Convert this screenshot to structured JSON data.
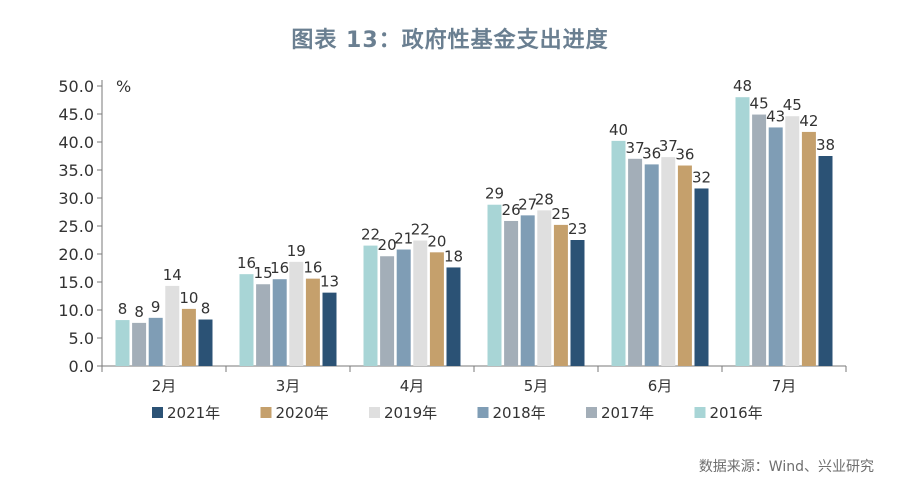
{
  "title": "图表 13：政府性基金支出进度",
  "source": "数据来源：Wind、兴业研究",
  "chart_data": {
    "type": "bar",
    "categories": [
      "2月",
      "3月",
      "4月",
      "5月",
      "6月",
      "7月"
    ],
    "yunit": "%",
    "ylim": [
      0,
      50
    ],
    "yticks": [
      "0.0",
      "5.0",
      "10.0",
      "15.0",
      "20.0",
      "25.0",
      "30.0",
      "35.0",
      "40.0",
      "45.0",
      "50.0"
    ],
    "grid": false,
    "legend_position": "bottom",
    "bar_order": [
      "2016年",
      "2017年",
      "2018年",
      "2019年",
      "2020年",
      "2021年"
    ],
    "legend_order": [
      "2021年",
      "2020年",
      "2019年",
      "2018年",
      "2017年",
      "2016年"
    ],
    "series": [
      {
        "name": "2016年",
        "color": "#a8d5d6",
        "values": [
          8.2,
          16.4,
          21.5,
          28.8,
          40.2,
          48.0
        ],
        "labels": [
          "8",
          "16",
          "22",
          "29",
          "40",
          "48"
        ]
      },
      {
        "name": "2017年",
        "color": "#a3aeb8",
        "values": [
          7.7,
          14.6,
          19.6,
          25.9,
          37.0,
          44.9
        ],
        "labels": [
          "8",
          "15",
          "20",
          "26",
          "37",
          "45"
        ]
      },
      {
        "name": "2018年",
        "color": "#7f9db5",
        "values": [
          8.6,
          15.5,
          20.8,
          26.9,
          36.0,
          42.6
        ],
        "labels": [
          "9",
          "16",
          "21",
          "27",
          "36",
          "43"
        ]
      },
      {
        "name": "2019年",
        "color": "#dfdfdf",
        "values": [
          14.3,
          18.6,
          22.4,
          27.8,
          37.3,
          44.6
        ],
        "labels": [
          "14",
          "19",
          "22",
          "28",
          "37",
          "45"
        ]
      },
      {
        "name": "2020年",
        "color": "#c5a06c",
        "values": [
          10.2,
          15.6,
          20.3,
          25.2,
          35.8,
          41.8
        ],
        "labels": [
          "10",
          "16",
          "20",
          "25",
          "36",
          "42"
        ]
      },
      {
        "name": "2021年",
        "color": "#2b5275",
        "values": [
          8.3,
          13.1,
          17.6,
          22.5,
          31.7,
          37.5
        ],
        "labels": [
          "8",
          "13",
          "18",
          "23",
          "32",
          "38"
        ]
      }
    ]
  }
}
